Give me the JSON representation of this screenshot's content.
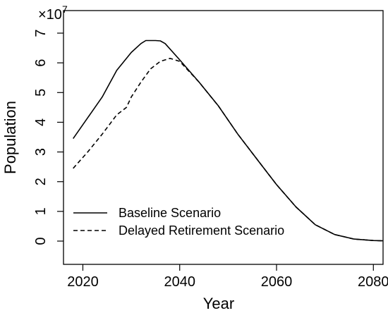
{
  "chart_data": {
    "type": "line",
    "title": "",
    "xlabel": "Year",
    "ylabel": "Population",
    "y_multiplier": {
      "base": "×10",
      "exponent": "7"
    },
    "xlim": [
      2016,
      2082
    ],
    "ylim": [
      0,
      7
    ],
    "x_ticks": [
      2020,
      2040,
      2060,
      2080
    ],
    "y_ticks": [
      0,
      1,
      2,
      3,
      4,
      5,
      6,
      7
    ],
    "grid": false,
    "legend_position": "bottom-left",
    "series": [
      {
        "name": "Baseline Scenario",
        "line_style": "solid",
        "x": [
          2018,
          2021,
          2024,
          2027,
          2030,
          2032,
          2033,
          2034,
          2035,
          2036,
          2037,
          2040,
          2044,
          2048,
          2052,
          2056,
          2060,
          2064,
          2068,
          2072,
          2076,
          2080,
          2082
        ],
        "y": [
          3.45,
          4.15,
          4.85,
          5.75,
          6.35,
          6.65,
          6.75,
          6.75,
          6.75,
          6.74,
          6.65,
          6.1,
          5.35,
          4.55,
          3.6,
          2.75,
          1.9,
          1.15,
          0.55,
          0.22,
          0.07,
          0.02,
          0.01
        ]
      },
      {
        "name": "Delayed Retirement Scenario",
        "line_style": "dashed",
        "x": [
          2018,
          2021,
          2024,
          2027,
          2029,
          2030,
          2032,
          2034,
          2036,
          2038,
          2040,
          2044,
          2048,
          2052,
          2056,
          2060,
          2064,
          2068,
          2072,
          2076,
          2080,
          2082
        ],
        "y": [
          2.45,
          3.0,
          3.6,
          4.25,
          4.5,
          4.85,
          5.35,
          5.8,
          6.05,
          6.15,
          6.05,
          5.35,
          4.55,
          3.6,
          2.75,
          1.9,
          1.15,
          0.55,
          0.22,
          0.07,
          0.02,
          0.01
        ]
      }
    ]
  }
}
